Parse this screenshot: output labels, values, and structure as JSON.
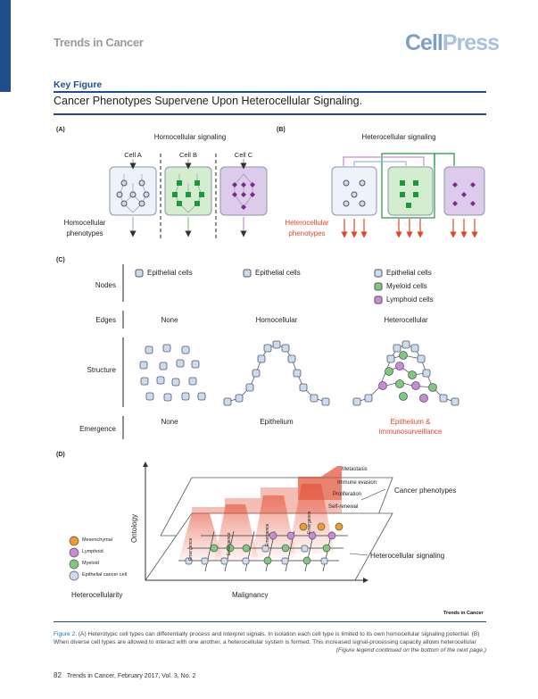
{
  "header": {
    "journal_name": "Trends in Cancer",
    "publisher_logo_cell": "Cell",
    "publisher_logo_press": "Press",
    "section_label": "Key Figure",
    "figure_title": "Cancer Phenotypes Supervene Upon Heterocellular Signaling."
  },
  "panel_a": {
    "label": "(A)",
    "title": "Homocellular signaling",
    "cells": [
      "Cell A",
      "Cell B",
      "Cell C"
    ],
    "phenotypes_line1": "Homocellular",
    "phenotypes_line2": "phenotypes"
  },
  "panel_b": {
    "label": "(B)",
    "title": "Heterocellular signaling",
    "phenotypes_line1": "Heterocellular",
    "phenotypes_line2": "phenotypes"
  },
  "panel_c": {
    "label": "(C)",
    "row_labels": [
      "Nodes",
      "Edges",
      "Structure",
      "Emergence"
    ],
    "nodes": {
      "col1": "Epithelial cells",
      "col2": "Epithelial cells",
      "col3": [
        "Epithelial cells",
        "Myeloid cells",
        "Lymphoid cells"
      ]
    },
    "edges": [
      "None",
      "Homocellular",
      "Heterocellular"
    ],
    "emergence": [
      "None",
      "Epithelium"
    ],
    "emergence_red_line1": "Epithelium &",
    "emergence_red_line2": "immunosurveillance"
  },
  "panel_d": {
    "label": "(D)",
    "legend": [
      "Mesenchymal",
      "Lymphoid",
      "Myeloid",
      "Epithelial cancer cell"
    ],
    "phenotypes": [
      "Metastasis",
      "Immune evasion",
      "Proliferation",
      "Self-renewal"
    ],
    "emergence_label": "Emergence",
    "ontology": "Ontology",
    "cancer_phenotypes": "Cancer phenotypes",
    "heterocellular_signaling": "Heterocellular signaling",
    "heterocellularity": "Heterocellularity",
    "malignancy": "Malignancy"
  },
  "trends_logo": "Trends in Cancer",
  "caption": {
    "figure_ref": "Figure 2.",
    "text": " (A) Heterotypic cell types can differentially process and interpret signals. In isolation each cell type is limited to its own homocellular signaling potential. (B) When diverse cell types are allowed to interact with one another, a heterocellular system is formed. This increased signal-processing capacity allows heterocellular",
    "continued": "(Figure legend continued on the bottom of the next page.)"
  },
  "footer": {
    "page_number": "82",
    "citation": "Trends in Cancer, February 2017, Vol. 3, No. 2"
  },
  "colors": {
    "accent": "#1e4f8a",
    "epithelial": "#c9dcf0",
    "myeloid": "#7fc97f",
    "lymphoid": "#c98ad8",
    "mesenchymal": "#f39a2b",
    "cell_a_fill": "#eef3fb",
    "cell_b_fill": "#d4ecd0",
    "cell_c_fill": "#dccbea",
    "red": "#e2452b"
  }
}
